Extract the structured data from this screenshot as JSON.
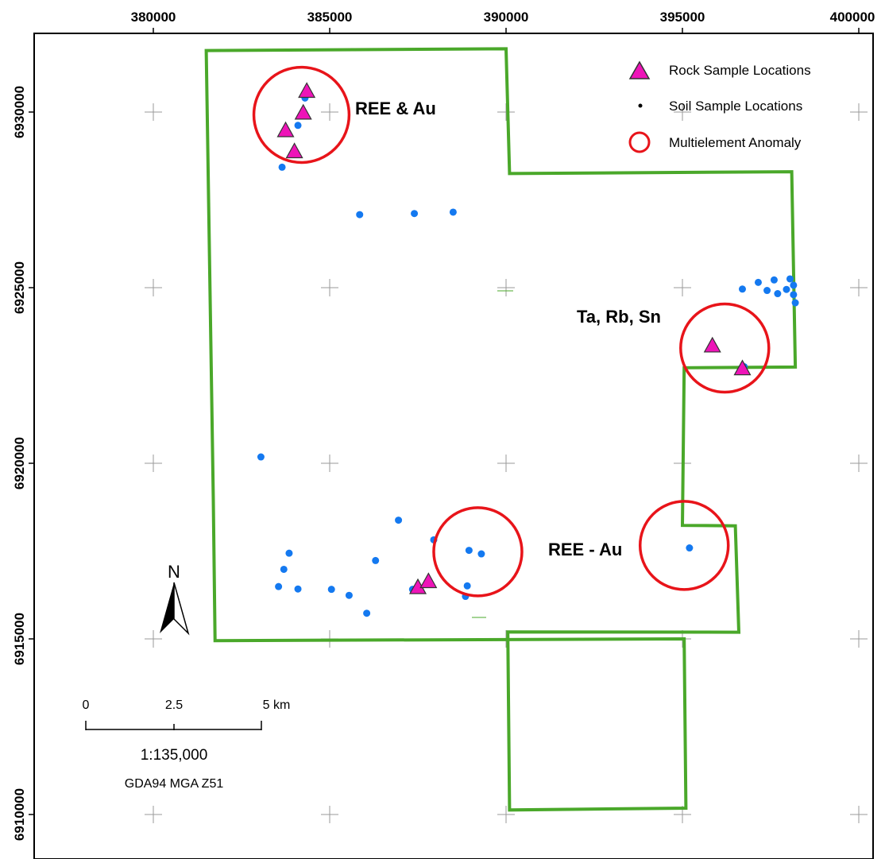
{
  "map": {
    "x_ticks": [
      "380000",
      "385000",
      "390000",
      "395000",
      "400000"
    ],
    "y_ticks": [
      "6930000",
      "6925000",
      "6920000",
      "6915000",
      "6910000"
    ],
    "colors": {
      "boundary": "#4aa82a",
      "rock_sample": "#ee14b8",
      "soil_sample": "#1479f0",
      "anomaly": "#e8141a",
      "grid_cross": "#9a9a9a"
    },
    "anomalies": [
      {
        "label": "REE & Au",
        "center": [
          384200,
          6929920
        ],
        "radius_m": 1350
      },
      {
        "label": "Ta, Rb, Sn",
        "center": [
          396200,
          6923280
        ],
        "radius_m": 1250
      },
      {
        "label": "REE - Au",
        "center": [
          389200,
          6917480
        ],
        "radius_m": 1250
      },
      {
        "label": "",
        "center": [
          395050,
          6917660
        ],
        "radius_m": 1250
      }
    ],
    "rock_samples": [
      [
        384350,
        6930600
      ],
      [
        384250,
        6929980
      ],
      [
        383750,
        6929480
      ],
      [
        384000,
        6928880
      ],
      [
        395850,
        6923350
      ],
      [
        396700,
        6922700
      ],
      [
        387500,
        6916470
      ],
      [
        387800,
        6916640
      ]
    ],
    "soil_samples": [
      [
        384300,
        6930400
      ],
      [
        384100,
        6929620
      ],
      [
        383650,
        6928430
      ],
      [
        385850,
        6927080
      ],
      [
        387400,
        6927110
      ],
      [
        388500,
        6927150
      ],
      [
        396700,
        6924960
      ],
      [
        397150,
        6925150
      ],
      [
        397600,
        6925220
      ],
      [
        398050,
        6925250
      ],
      [
        398150,
        6925070
      ],
      [
        397950,
        6924950
      ],
      [
        397400,
        6924920
      ],
      [
        397700,
        6924830
      ],
      [
        398150,
        6924800
      ],
      [
        398200,
        6924570
      ],
      [
        396750,
        6922750
      ],
      [
        396700,
        6922720
      ],
      [
        383050,
        6920180
      ],
      [
        386950,
        6918380
      ],
      [
        387950,
        6917820
      ],
      [
        388950,
        6917520
      ],
      [
        389300,
        6917420
      ],
      [
        383850,
        6917440
      ],
      [
        383700,
        6916980
      ],
      [
        383550,
        6916490
      ],
      [
        384100,
        6916420
      ],
      [
        385050,
        6916410
      ],
      [
        385550,
        6916240
      ],
      [
        386300,
        6917230
      ],
      [
        386050,
        6915730
      ],
      [
        387350,
        6916410
      ],
      [
        388900,
        6916510
      ],
      [
        388850,
        6916210
      ],
      [
        395200,
        6917590
      ]
    ],
    "boundary_polygon": [
      [
        381500,
        6931750
      ],
      [
        390000,
        6931800
      ],
      [
        390100,
        6928250
      ],
      [
        398100,
        6928300
      ],
      [
        398200,
        6922740
      ],
      [
        395050,
        6922720
      ],
      [
        395000,
        6918230
      ],
      [
        396500,
        6918220
      ],
      [
        396600,
        6915190
      ],
      [
        390050,
        6915200
      ],
      [
        390100,
        6910130
      ],
      [
        395100,
        6910180
      ],
      [
        395050,
        6915000
      ],
      [
        381750,
        6914950
      ],
      [
        381700,
        6918970
      ],
      [
        381500,
        6931750
      ]
    ],
    "scale_labels": [
      "0",
      "2.5",
      "5 km"
    ],
    "scale_ratio": "1:135,000",
    "datum": "GDA94 MGA Z51",
    "north_label": "N"
  },
  "legend": {
    "rock_label": "Rock Sample Locations",
    "soil_label": "Soil Sample Locations",
    "anomaly_label": "Multielement Anomaly"
  }
}
